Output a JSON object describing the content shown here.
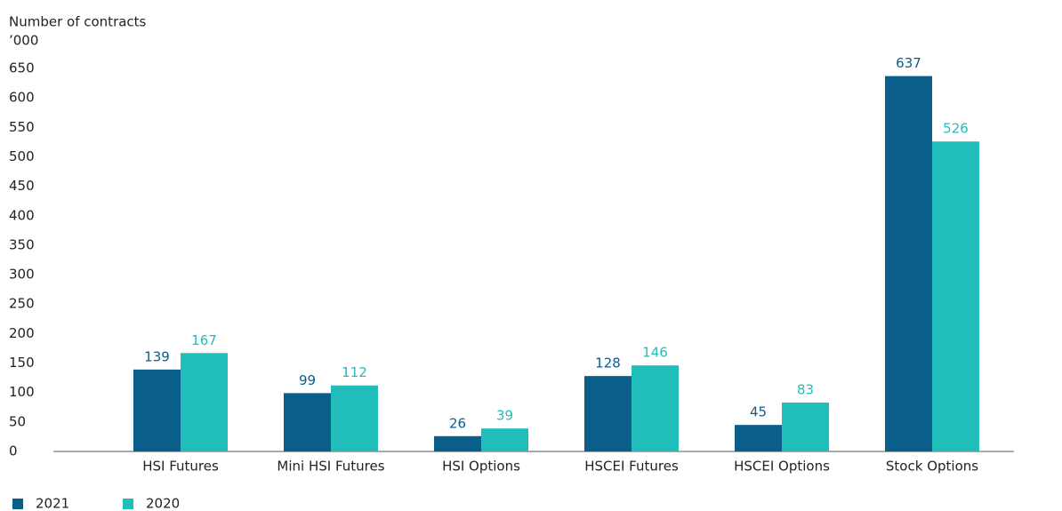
{
  "chart_data": {
    "type": "bar",
    "y_label": "Number of contracts",
    "y_unit": "’000",
    "categories": [
      "HSI Futures",
      "Mini HSI Futures",
      "HSI Options",
      "HSCEI Futures",
      "HSCEI Options",
      "Stock Options"
    ],
    "series": [
      {
        "name": "2021",
        "color": "#0a5e8a",
        "values": [
          139,
          99,
          26,
          128,
          45,
          637
        ]
      },
      {
        "name": "2020",
        "color": "#21bdbb",
        "values": [
          167,
          112,
          39,
          146,
          83,
          526
        ]
      }
    ],
    "ylim": [
      0,
      650
    ],
    "yticks": [
      0,
      50,
      100,
      150,
      200,
      250,
      300,
      350,
      400,
      450,
      500,
      550,
      600,
      650
    ],
    "grid": false
  }
}
